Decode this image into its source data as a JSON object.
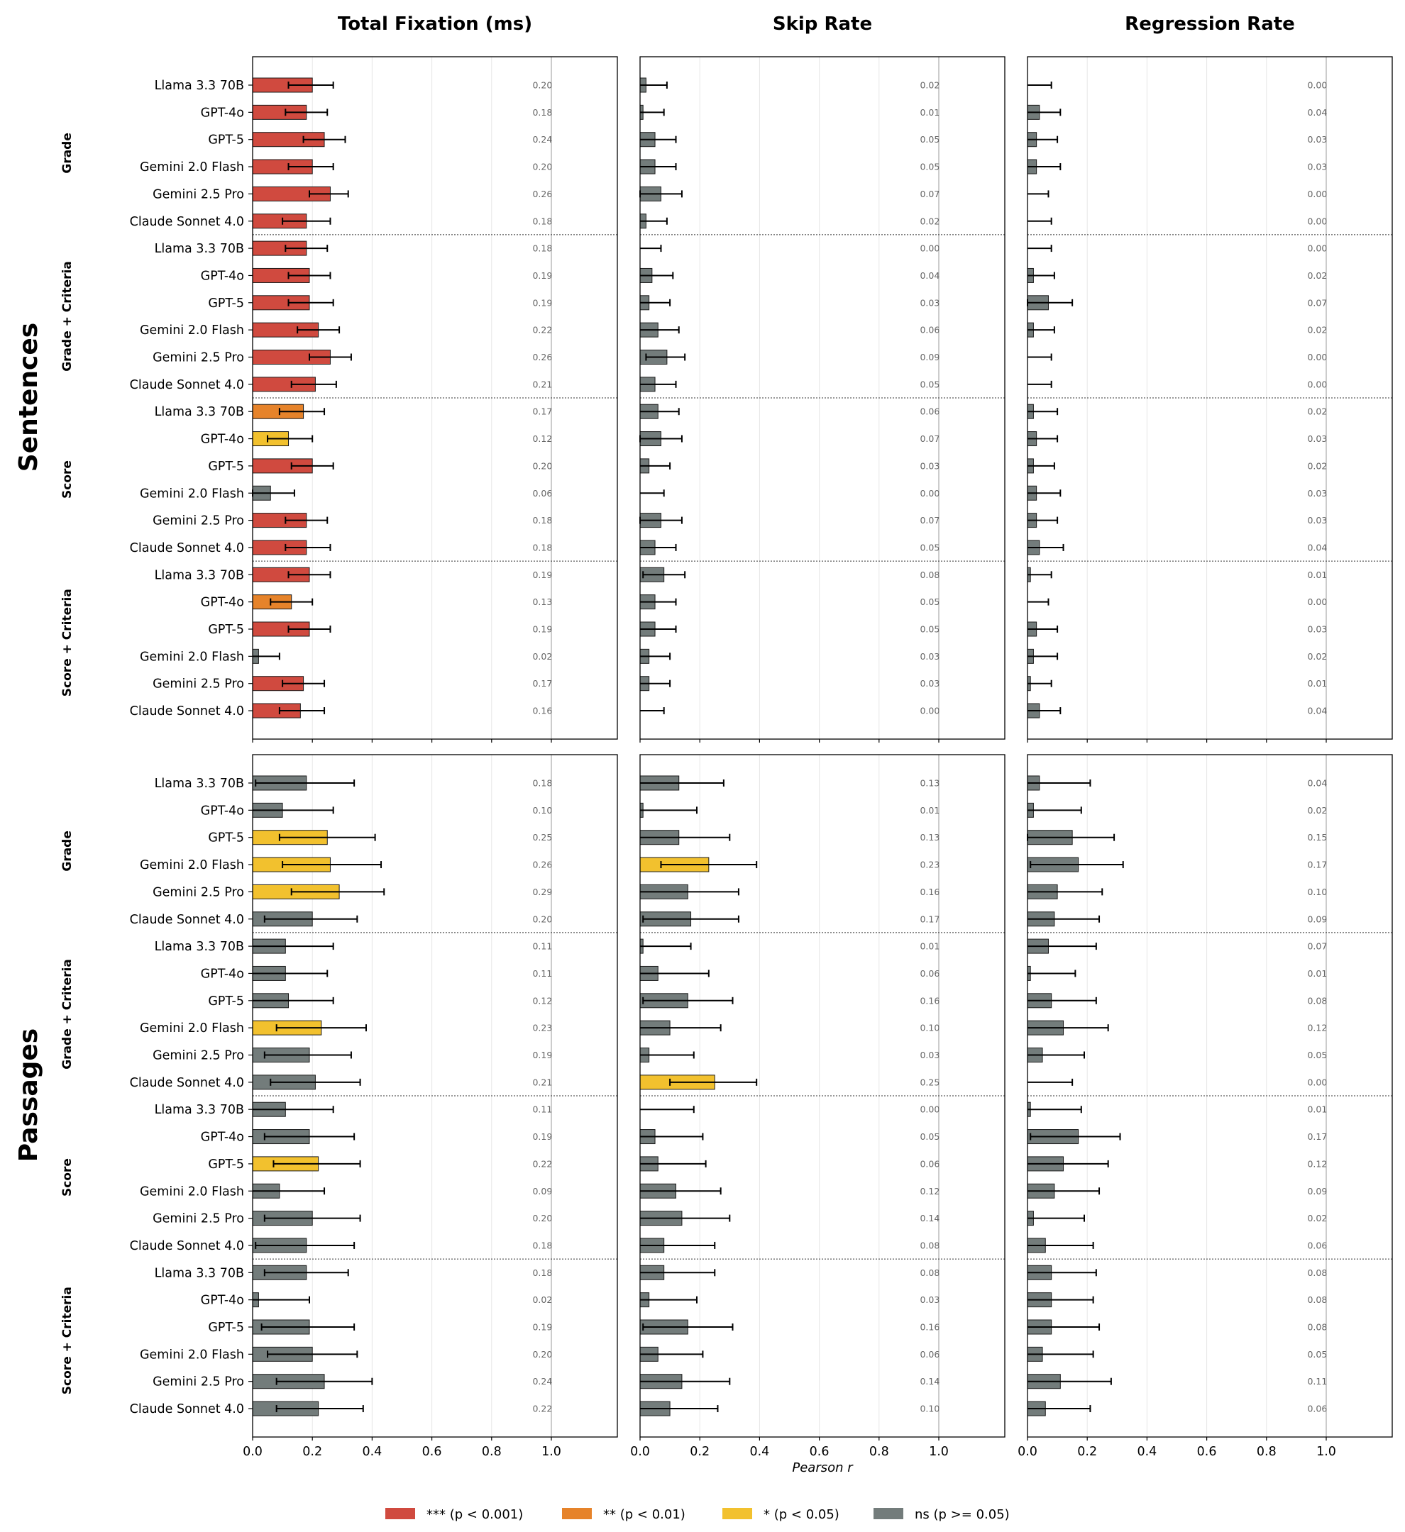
{
  "chart_data": {
    "type": "bar",
    "orientation": "horizontal",
    "columns": [
      "Total Fixation (ms)",
      "Skip Rate",
      "Regression Rate"
    ],
    "sections": [
      "Sentences",
      "Passages"
    ],
    "groups": [
      "Grade",
      "Grade + Criteria",
      "Score",
      "Score + Criteria"
    ],
    "models": [
      "Llama 3.3 70B",
      "GPT-4o",
      "GPT-5",
      "Gemini 2.0 Flash",
      "Gemini 2.5 Pro",
      "Claude Sonnet 4.0"
    ],
    "xlabel": "Pearson r",
    "xlim": [
      0,
      1.22
    ],
    "xticks": [
      "0.0",
      "0.2",
      "0.4",
      "0.6",
      "0.8",
      "1.0"
    ],
    "legend": [
      {
        "label": "*** (p < 0.001)",
        "color": "#d04a3f"
      },
      {
        "label": "** (p < 0.01)",
        "color": "#e6832a"
      },
      {
        "label": "* (p < 0.05)",
        "color": "#f2c12e"
      },
      {
        "label": "ns (p >= 0.05)",
        "color": "#737c7b"
      }
    ],
    "panels": {
      "Sentences": [
        {
          "values": [
            0.2,
            0.18,
            0.24,
            0.2,
            0.26,
            0.18,
            0.18,
            0.19,
            0.19,
            0.22,
            0.26,
            0.21,
            0.17,
            0.12,
            0.2,
            0.06,
            0.18,
            0.18,
            0.19,
            0.13,
            0.19,
            0.02,
            0.17,
            0.16
          ],
          "labels": [
            "0.20",
            "0.18",
            "0.24",
            "0.20",
            "0.26",
            "0.18",
            "0.18",
            "0.19",
            "0.19",
            "0.22",
            "0.26",
            "0.21",
            "0.17",
            "0.12",
            "0.20",
            "0.06",
            "0.18",
            "0.18",
            "0.19",
            "0.13",
            "0.19",
            "0.02",
            "0.17",
            "0.16"
          ],
          "sig": [
            "***",
            "***",
            "***",
            "***",
            "***",
            "***",
            "***",
            "***",
            "***",
            "***",
            "***",
            "***",
            "**",
            "*",
            "***",
            "ns",
            "***",
            "***",
            "***",
            "**",
            "***",
            "ns",
            "***",
            "***"
          ],
          "ci_low": [
            0.12,
            0.11,
            0.17,
            0.12,
            0.19,
            0.1,
            0.11,
            0.12,
            0.12,
            0.15,
            0.19,
            0.13,
            0.09,
            0.05,
            0.13,
            0.0,
            0.11,
            0.11,
            0.12,
            0.06,
            0.12,
            -0.05,
            0.1,
            0.09
          ],
          "ci_high": [
            0.27,
            0.25,
            0.31,
            0.27,
            0.32,
            0.26,
            0.25,
            0.26,
            0.27,
            0.29,
            0.33,
            0.28,
            0.24,
            0.2,
            0.27,
            0.14,
            0.25,
            0.26,
            0.26,
            0.2,
            0.26,
            0.09,
            0.24,
            0.24
          ]
        },
        {
          "values": [
            0.02,
            0.01,
            0.05,
            0.05,
            0.07,
            0.02,
            0.0,
            0.04,
            0.03,
            0.06,
            0.09,
            0.05,
            0.06,
            0.07,
            0.03,
            0.0,
            0.07,
            0.05,
            0.08,
            0.05,
            0.05,
            0.03,
            0.03,
            0.0
          ],
          "labels": [
            "0.02",
            "0.01",
            "0.05",
            "0.05",
            "0.07",
            "0.02",
            "0.00",
            "0.04",
            "0.03",
            "0.06",
            "0.09",
            "0.05",
            "0.06",
            "0.07",
            "0.03",
            "0.00",
            "0.07",
            "0.05",
            "0.08",
            "0.05",
            "0.05",
            "0.03",
            "0.03",
            "0.00"
          ],
          "sig": [
            "ns",
            "ns",
            "ns",
            "ns",
            "ns",
            "ns",
            "ns",
            "ns",
            "ns",
            "ns",
            "ns",
            "ns",
            "ns",
            "ns",
            "ns",
            "ns",
            "ns",
            "ns",
            "ns",
            "ns",
            "ns",
            "ns",
            "ns",
            "ns"
          ],
          "ci_low": [
            -0.05,
            -0.06,
            -0.02,
            -0.02,
            0.0,
            -0.05,
            -0.07,
            -0.03,
            -0.04,
            -0.01,
            0.02,
            -0.02,
            -0.01,
            0.0,
            -0.04,
            -0.07,
            0.0,
            -0.02,
            0.01,
            -0.02,
            -0.02,
            -0.04,
            -0.04,
            -0.07
          ],
          "ci_high": [
            0.09,
            0.08,
            0.12,
            0.12,
            0.14,
            0.09,
            0.07,
            0.11,
            0.1,
            0.13,
            0.15,
            0.12,
            0.13,
            0.14,
            0.1,
            0.08,
            0.14,
            0.12,
            0.15,
            0.12,
            0.12,
            0.1,
            0.1,
            0.08
          ]
        },
        {
          "values": [
            0.0,
            0.04,
            0.03,
            0.03,
            0.0,
            0.0,
            0.0,
            0.02,
            0.07,
            0.02,
            0.0,
            0.0,
            0.02,
            0.03,
            0.02,
            0.03,
            0.03,
            0.04,
            0.01,
            0.0,
            0.03,
            0.02,
            0.01,
            0.04
          ],
          "labels": [
            "0.00",
            "0.04",
            "0.03",
            "0.03",
            "0.00",
            "0.00",
            "0.00",
            "0.02",
            "0.07",
            "0.02",
            "0.00",
            "0.00",
            "0.02",
            "0.03",
            "0.02",
            "0.03",
            "0.03",
            "0.04",
            "0.01",
            "0.00",
            "0.03",
            "0.02",
            "0.01",
            "0.04"
          ],
          "sig": [
            "ns",
            "ns",
            "ns",
            "ns",
            "ns",
            "ns",
            "ns",
            "ns",
            "ns",
            "ns",
            "ns",
            "ns",
            "ns",
            "ns",
            "ns",
            "ns",
            "ns",
            "ns",
            "ns",
            "ns",
            "ns",
            "ns",
            "ns",
            "ns"
          ],
          "ci_low": [
            -0.07,
            -0.03,
            -0.04,
            -0.04,
            -0.07,
            -0.07,
            -0.07,
            -0.05,
            0.0,
            -0.05,
            -0.07,
            -0.07,
            -0.05,
            -0.04,
            -0.05,
            -0.04,
            -0.04,
            -0.03,
            -0.06,
            -0.07,
            -0.04,
            -0.05,
            -0.06,
            -0.03
          ],
          "ci_high": [
            0.08,
            0.11,
            0.1,
            0.11,
            0.07,
            0.08,
            0.08,
            0.09,
            0.15,
            0.09,
            0.08,
            0.08,
            0.1,
            0.1,
            0.09,
            0.11,
            0.1,
            0.12,
            0.08,
            0.07,
            0.1,
            0.1,
            0.08,
            0.11
          ]
        }
      ],
      "Passages": [
        {
          "values": [
            0.18,
            0.1,
            0.25,
            0.26,
            0.29,
            0.2,
            0.11,
            0.11,
            0.12,
            0.23,
            0.19,
            0.21,
            0.11,
            0.19,
            0.22,
            0.09,
            0.2,
            0.18,
            0.18,
            0.02,
            0.19,
            0.2,
            0.24,
            0.22
          ],
          "labels": [
            "0.18",
            "0.10",
            "0.25",
            "0.26",
            "0.29",
            "0.20",
            "0.11",
            "0.11",
            "0.12",
            "0.23",
            "0.19",
            "0.21",
            "0.11",
            "0.19",
            "0.22",
            "0.09",
            "0.20",
            "0.18",
            "0.18",
            "0.02",
            "0.19",
            "0.20",
            "0.24",
            "0.22"
          ],
          "sig": [
            "ns",
            "ns",
            "*",
            "*",
            "*",
            "ns",
            "ns",
            "ns",
            "ns",
            "*",
            "ns",
            "ns",
            "ns",
            "ns",
            "*",
            "ns",
            "ns",
            "ns",
            "ns",
            "ns",
            "ns",
            "ns",
            "ns",
            "ns"
          ],
          "ci_low": [
            0.01,
            -0.07,
            0.09,
            0.1,
            0.13,
            0.04,
            -0.06,
            -0.06,
            -0.05,
            0.08,
            0.04,
            0.06,
            -0.05,
            0.04,
            0.07,
            -0.07,
            0.04,
            0.01,
            0.04,
            -0.13,
            0.03,
            0.05,
            0.08,
            0.08
          ],
          "ci_high": [
            0.34,
            0.27,
            0.41,
            0.43,
            0.44,
            0.35,
            0.27,
            0.25,
            0.27,
            0.38,
            0.33,
            0.36,
            0.27,
            0.34,
            0.36,
            0.24,
            0.36,
            0.34,
            0.32,
            0.19,
            0.34,
            0.35,
            0.4,
            0.37
          ]
        },
        {
          "values": [
            0.13,
            0.01,
            0.13,
            0.23,
            0.16,
            0.17,
            0.01,
            0.06,
            0.16,
            0.1,
            0.03,
            0.25,
            0.0,
            0.05,
            0.06,
            0.12,
            0.14,
            0.08,
            0.08,
            0.03,
            0.16,
            0.06,
            0.14,
            0.1
          ],
          "labels": [
            "0.13",
            "0.01",
            "0.13",
            "0.23",
            "0.16",
            "0.17",
            "0.01",
            "0.06",
            "0.16",
            "0.10",
            "0.03",
            "0.25",
            "0.00",
            "0.05",
            "0.06",
            "0.12",
            "0.14",
            "0.08",
            "0.08",
            "0.03",
            "0.16",
            "0.06",
            "0.14",
            "0.10"
          ],
          "sig": [
            "ns",
            "ns",
            "ns",
            "*",
            "ns",
            "ns",
            "ns",
            "ns",
            "ns",
            "ns",
            "ns",
            "*",
            "ns",
            "ns",
            "ns",
            "ns",
            "ns",
            "ns",
            "ns",
            "ns",
            "ns",
            "ns",
            "ns",
            "ns"
          ],
          "ci_low": [
            -0.03,
            -0.16,
            -0.03,
            0.07,
            -0.01,
            0.01,
            -0.16,
            -0.11,
            0.01,
            -0.07,
            -0.13,
            0.1,
            -0.17,
            -0.12,
            -0.1,
            -0.04,
            -0.02,
            -0.08,
            -0.08,
            -0.13,
            0.01,
            -0.11,
            -0.02,
            -0.06
          ],
          "ci_high": [
            0.28,
            0.19,
            0.3,
            0.39,
            0.33,
            0.33,
            0.17,
            0.23,
            0.31,
            0.27,
            0.18,
            0.39,
            0.18,
            0.21,
            0.22,
            0.27,
            0.3,
            0.25,
            0.25,
            0.19,
            0.31,
            0.21,
            0.3,
            0.26
          ]
        },
        {
          "values": [
            0.04,
            0.02,
            0.15,
            0.17,
            0.1,
            0.09,
            0.07,
            0.01,
            0.08,
            0.12,
            0.05,
            0.0,
            0.01,
            0.17,
            0.12,
            0.09,
            0.02,
            0.06,
            0.08,
            0.08,
            0.08,
            0.05,
            0.11,
            0.06
          ],
          "labels": [
            "0.04",
            "0.02",
            "0.15",
            "0.17",
            "0.10",
            "0.09",
            "0.07",
            "0.01",
            "0.08",
            "0.12",
            "0.05",
            "0.00",
            "0.01",
            "0.17",
            "0.12",
            "0.09",
            "0.02",
            "0.06",
            "0.08",
            "0.08",
            "0.08",
            "0.05",
            "0.11",
            "0.06"
          ],
          "sig": [
            "ns",
            "ns",
            "ns",
            "ns",
            "ns",
            "ns",
            "ns",
            "ns",
            "ns",
            "ns",
            "ns",
            "ns",
            "ns",
            "ns",
            "ns",
            "ns",
            "ns",
            "ns",
            "ns",
            "ns",
            "ns",
            "ns",
            "ns",
            "ns"
          ],
          "ci_low": [
            -0.12,
            -0.14,
            0.0,
            0.01,
            -0.06,
            -0.07,
            -0.09,
            -0.15,
            -0.08,
            -0.04,
            -0.11,
            -0.15,
            -0.16,
            0.01,
            -0.03,
            -0.07,
            -0.14,
            -0.1,
            -0.08,
            -0.08,
            -0.08,
            -0.11,
            -0.06,
            -0.1
          ],
          "ci_high": [
            0.21,
            0.18,
            0.29,
            0.32,
            0.25,
            0.24,
            0.23,
            0.16,
            0.23,
            0.27,
            0.19,
            0.15,
            0.18,
            0.31,
            0.27,
            0.24,
            0.19,
            0.22,
            0.23,
            0.22,
            0.24,
            0.22,
            0.28,
            0.21
          ]
        }
      ]
    }
  }
}
